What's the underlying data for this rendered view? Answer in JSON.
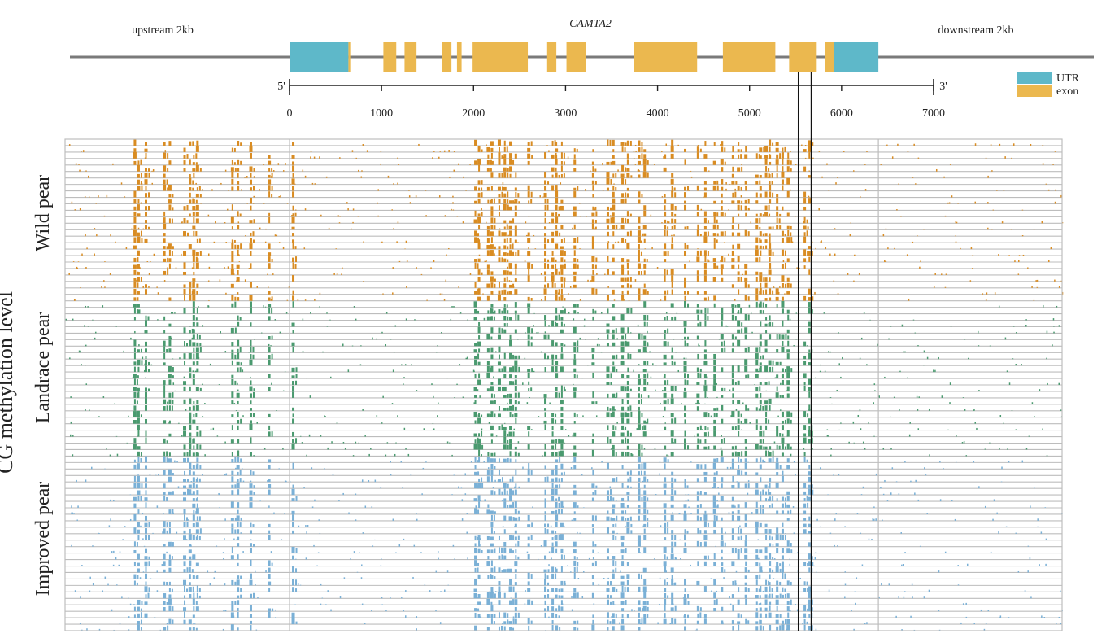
{
  "chart_data": {
    "type": "heatmap",
    "title": "CAMTA2",
    "ylabel": "CG methylation level",
    "xlabel": "",
    "region_labels": {
      "upstream": "upstream 2kb",
      "downstream": "downstream 2kb"
    },
    "strand_labels": {
      "five_prime": "5'",
      "three_prime": "3'"
    },
    "axis": {
      "ticks": [
        0,
        1000,
        2000,
        3000,
        4000,
        5000,
        6000,
        7000
      ],
      "range": [
        0,
        7000
      ]
    },
    "legend": [
      {
        "label": "UTR",
        "color": "#5eb8c9"
      },
      {
        "label": "exon",
        "color": "#ebb84f"
      }
    ],
    "features": [
      {
        "type": "UTR",
        "start": 0,
        "end": 640
      },
      {
        "type": "exon",
        "start": 640,
        "end": 660
      },
      {
        "type": "exon",
        "start": 1020,
        "end": 1160
      },
      {
        "type": "exon",
        "start": 1250,
        "end": 1380
      },
      {
        "type": "exon",
        "start": 1660,
        "end": 1760
      },
      {
        "type": "exon",
        "start": 1820,
        "end": 1870
      },
      {
        "type": "exon",
        "start": 1990,
        "end": 2590
      },
      {
        "type": "exon",
        "start": 2800,
        "end": 2900
      },
      {
        "type": "exon",
        "start": 3010,
        "end": 3220
      },
      {
        "type": "exon",
        "start": 3740,
        "end": 4430
      },
      {
        "type": "exon",
        "start": 4710,
        "end": 5280
      },
      {
        "type": "exon",
        "start": 5430,
        "end": 5730
      },
      {
        "type": "exon",
        "start": 5820,
        "end": 5920
      },
      {
        "type": "UTR",
        "start": 5920,
        "end": 6400
      }
    ],
    "highlight_positions": [
      5530,
      5670
    ],
    "groups": [
      {
        "name": "Wild pear",
        "color": "#d98c22",
        "samples": 25
      },
      {
        "name": "Landrace pear",
        "color": "#4a9a6f",
        "samples": 24
      },
      {
        "name": "Improved pear",
        "color": "#7ab0d6",
        "samples": 27
      }
    ],
    "hotspot_positions": [
      -1680,
      -1640,
      -1560,
      -1360,
      -1300,
      -1140,
      -1080,
      -1040,
      -1000,
      -620,
      -560,
      -420,
      -220,
      40,
      2020,
      2060,
      2160,
      2200,
      2280,
      2340,
      2400,
      2460,
      2600,
      2780,
      2860,
      2900,
      2960,
      3100,
      3300,
      3460,
      3520,
      3620,
      3680,
      3800,
      3860,
      4080,
      4160,
      4300,
      4440,
      4520,
      4620,
      4700,
      4820,
      4880,
      4960,
      5080,
      5120,
      5180,
      5220,
      5300,
      5360,
      5420,
      5600,
      5650
    ]
  }
}
